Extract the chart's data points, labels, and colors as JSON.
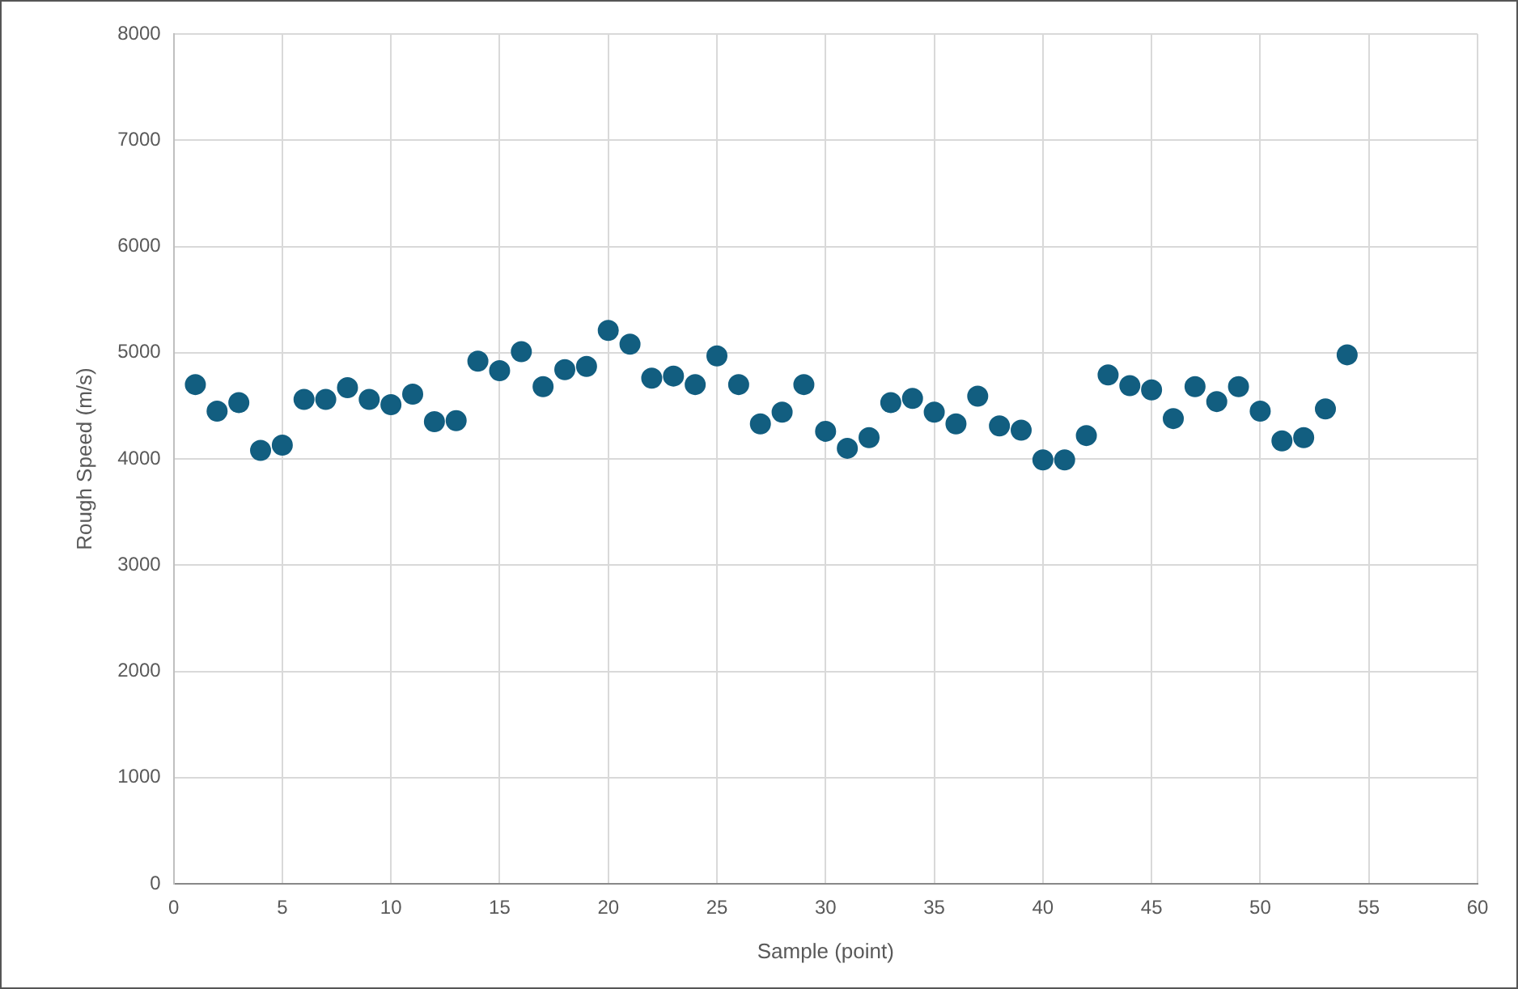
{
  "chart_data": {
    "type": "scatter",
    "xlabel": "Sample (point)",
    "ylabel": "Rough Speed (m/s)",
    "x": [
      1,
      2,
      3,
      4,
      5,
      6,
      7,
      8,
      9,
      10,
      11,
      12,
      13,
      14,
      15,
      16,
      17,
      18,
      19,
      20,
      21,
      22,
      23,
      24,
      25,
      26,
      27,
      28,
      29,
      30,
      31,
      32,
      33,
      34,
      35,
      36,
      37,
      38,
      39,
      40,
      41,
      42,
      43,
      44,
      45,
      46,
      47,
      48,
      49,
      50,
      51,
      52,
      53,
      54
    ],
    "series": [
      {
        "color": "#125e80",
        "values": [
          4700,
          4450,
          4530,
          4080,
          4130,
          4560,
          4560,
          4670,
          4560,
          4510,
          4610,
          4350,
          4360,
          4920,
          4830,
          5010,
          4680,
          4840,
          4870,
          5210,
          5080,
          4760,
          4780,
          4700,
          4970,
          4700,
          4330,
          4440,
          4700,
          4260,
          4100,
          4200,
          4530,
          4570,
          4440,
          4330,
          4590,
          4310,
          4270,
          3990,
          3990,
          4220,
          4790,
          4690,
          4650,
          4380,
          4680,
          4540,
          4680,
          4450,
          4170,
          4200,
          4470,
          4980
        ]
      }
    ],
    "xlim": [
      0,
      60
    ],
    "xticks": [
      0,
      5,
      10,
      15,
      20,
      25,
      30,
      35,
      40,
      45,
      50,
      55,
      60
    ],
    "ylim": [
      0,
      8000
    ],
    "yticks": [
      0,
      1000,
      2000,
      3000,
      4000,
      5000,
      6000,
      7000,
      8000
    ],
    "grid": true,
    "legend": false,
    "marker": "circle"
  }
}
